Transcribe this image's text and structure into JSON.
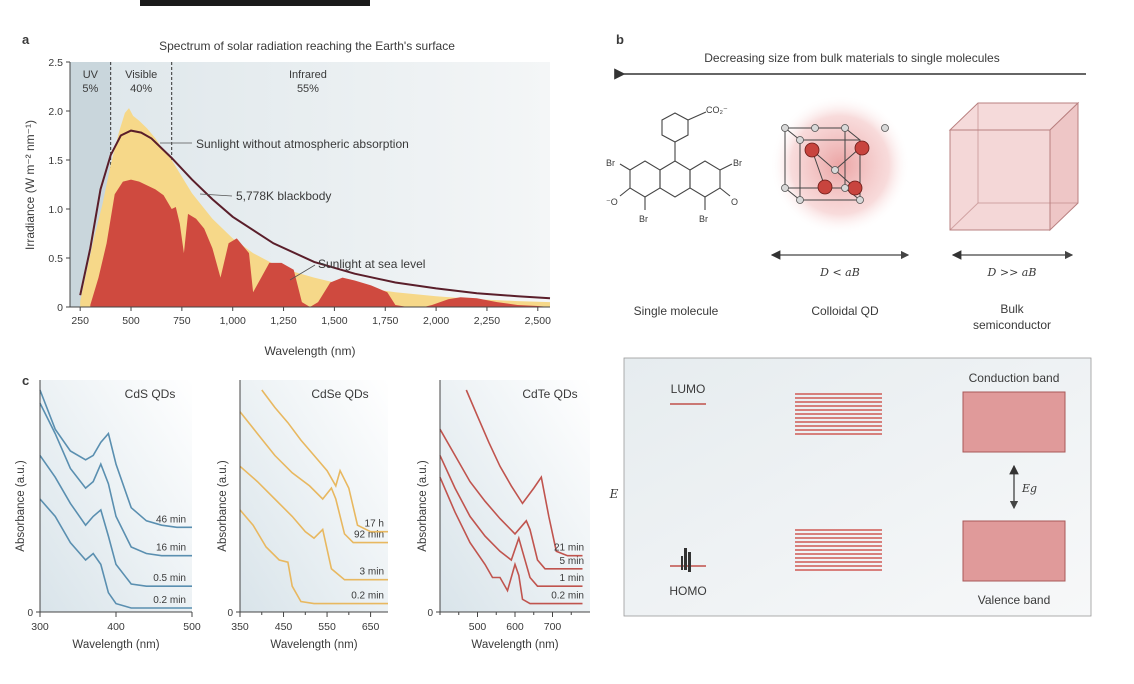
{
  "chart_data": [
    {
      "panel": "a",
      "type": "area",
      "title": "Spectrum of solar radiation reaching the Earth's surface",
      "xlabel": "Wavelength (nm)",
      "ylabel": "Irradiance (W m⁻² nm⁻¹)",
      "xlim": [
        200,
        2560
      ],
      "ylim": [
        0,
        2.5
      ],
      "xticks": [
        "250",
        "500",
        "750",
        "1,000",
        "1,250",
        "1,500",
        "1,750",
        "2,000",
        "2,250",
        "2,500"
      ],
      "xtick_values": [
        250,
        500,
        750,
        1000,
        1250,
        1500,
        1750,
        2000,
        2250,
        2500
      ],
      "yticks": [
        "0",
        "0.5",
        "1.0",
        "1.5",
        "2.0",
        "2.5"
      ],
      "ytick_values": [
        0,
        0.5,
        1.0,
        1.5,
        2.0,
        2.5
      ],
      "regions": [
        {
          "name": "UV",
          "value": "5%",
          "from": 200,
          "to": 400
        },
        {
          "name": "Visible",
          "value": "40%",
          "from": 400,
          "to": 700
        },
        {
          "name": "Infrared",
          "value": "55%",
          "from": 700,
          "to": 2560
        }
      ],
      "region_boundaries": [
        400,
        700
      ],
      "annotations": {
        "extraterrestrial": "Sunlight without atmospheric absorption",
        "blackbody": "5,778K blackbody",
        "sealevel": "Sunlight at sea level"
      },
      "series": [
        {
          "key": "extraterrestrial",
          "color": "#f6d889",
          "x": [
            250,
            280,
            320,
            360,
            400,
            440,
            470,
            490,
            510,
            540,
            580,
            620,
            660,
            700,
            750,
            800,
            900,
            1000,
            1100,
            1200,
            1300,
            1400,
            1500,
            1600,
            1800,
            2000,
            2200,
            2400,
            2560
          ],
          "y": [
            0.06,
            0.35,
            0.72,
            1.05,
            1.45,
            1.78,
            1.98,
            2.03,
            1.95,
            1.9,
            1.82,
            1.72,
            1.6,
            1.5,
            1.33,
            1.16,
            0.9,
            0.7,
            0.55,
            0.44,
            0.36,
            0.3,
            0.25,
            0.21,
            0.15,
            0.11,
            0.08,
            0.06,
            0.05
          ]
        },
        {
          "key": "sealevel",
          "color": "#cf4a3f",
          "x": [
            300,
            340,
            380,
            420,
            460,
            500,
            540,
            580,
            620,
            660,
            700,
            720,
            740,
            760,
            780,
            820,
            860,
            900,
            940,
            980,
            1020,
            1080,
            1100,
            1140,
            1180,
            1240,
            1300,
            1340,
            1380,
            1420,
            1480,
            1540,
            1600,
            1680,
            1760,
            1800,
            1860,
            1940,
            1980,
            2060,
            2120,
            2200,
            2300,
            2400,
            2500,
            2560
          ],
          "y": [
            0.02,
            0.3,
            0.65,
            1.15,
            1.28,
            1.3,
            1.28,
            1.24,
            1.2,
            1.14,
            1.0,
            1.02,
            0.85,
            0.55,
            0.95,
            0.9,
            0.8,
            0.6,
            0.3,
            0.65,
            0.7,
            0.55,
            0.15,
            0.3,
            0.45,
            0.45,
            0.38,
            0.05,
            0.0,
            0.05,
            0.25,
            0.3,
            0.27,
            0.22,
            0.15,
            0.02,
            0.0,
            0.0,
            0.02,
            0.08,
            0.1,
            0.09,
            0.05,
            0.02,
            0.01,
            0.0
          ]
        },
        {
          "key": "blackbody",
          "color": "#5a1e2a",
          "x": [
            250,
            300,
            350,
            400,
            450,
            500,
            550,
            600,
            700,
            800,
            900,
            1000,
            1200,
            1400,
            1600,
            1800,
            2000,
            2200,
            2400,
            2560
          ],
          "y": [
            0.12,
            0.6,
            1.2,
            1.55,
            1.75,
            1.8,
            1.78,
            1.72,
            1.52,
            1.3,
            1.1,
            0.92,
            0.65,
            0.46,
            0.34,
            0.25,
            0.19,
            0.14,
            0.11,
            0.09
          ]
        }
      ]
    },
    {
      "panel": "c",
      "type": "line",
      "title": "CdS QDs",
      "xlabel": "Wavelength (nm)",
      "ylabel": "Absorbance (a.u.)",
      "xlim": [
        300,
        500
      ],
      "xticks": [
        "300",
        "400",
        "500"
      ],
      "xtick_values": [
        300,
        400,
        500
      ],
      "ytick0": "0",
      "color": "#5a8fb0",
      "series": [
        {
          "name": "0.2 min",
          "x": [
            300,
            320,
            340,
            360,
            370,
            380,
            390,
            400,
            420,
            440,
            460,
            480,
            500
          ],
          "y": [
            0.5,
            0.42,
            0.3,
            0.22,
            0.25,
            0.2,
            0.07,
            0.02,
            0.0,
            0.0,
            0.0,
            0.0,
            0.0
          ]
        },
        {
          "name": "0.5 min",
          "x": [
            300,
            320,
            340,
            360,
            370,
            380,
            390,
            400,
            420,
            440,
            460,
            480,
            500
          ],
          "y": [
            0.7,
            0.6,
            0.48,
            0.38,
            0.42,
            0.45,
            0.33,
            0.2,
            0.11,
            0.1,
            0.1,
            0.1,
            0.1
          ]
        },
        {
          "name": "16 min",
          "x": [
            300,
            320,
            340,
            360,
            370,
            380,
            390,
            400,
            420,
            440,
            460,
            480,
            500
          ],
          "y": [
            0.94,
            0.8,
            0.64,
            0.55,
            0.58,
            0.66,
            0.57,
            0.42,
            0.28,
            0.25,
            0.24,
            0.24,
            0.24
          ]
        },
        {
          "name": "46 min",
          "x": [
            300,
            320,
            340,
            360,
            370,
            380,
            390,
            400,
            420,
            440,
            460,
            480,
            500
          ],
          "y": [
            1.0,
            0.82,
            0.72,
            0.68,
            0.7,
            0.76,
            0.8,
            0.66,
            0.46,
            0.4,
            0.38,
            0.37,
            0.37
          ]
        }
      ]
    },
    {
      "panel": "c",
      "type": "line",
      "title": "CdSe QDs",
      "xlabel": "Wavelength (nm)",
      "ylabel": "Absorbance (a.u.)",
      "xlim": [
        350,
        690
      ],
      "xticks": [
        "350",
        "450",
        "550",
        "650"
      ],
      "xtick_values": [
        350,
        450,
        550,
        650
      ],
      "xticks_minor": [
        "400",
        "500",
        "600"
      ],
      "xtick_minor_values": [
        400,
        500,
        600
      ],
      "ytick0": "0",
      "color": "#e8b860",
      "series": [
        {
          "name": "0.2 min",
          "x": [
            350,
            380,
            410,
            440,
            460,
            470,
            490,
            520,
            560,
            600,
            650,
            690
          ],
          "y": [
            0.45,
            0.38,
            0.28,
            0.22,
            0.21,
            0.1,
            0.03,
            0.02,
            0.02,
            0.02,
            0.02,
            0.02
          ]
        },
        {
          "name": "3 min",
          "x": [
            350,
            390,
            430,
            470,
            500,
            520,
            540,
            560,
            590,
            620,
            650,
            690
          ],
          "y": [
            0.65,
            0.58,
            0.5,
            0.42,
            0.35,
            0.32,
            0.36,
            0.18,
            0.13,
            0.13,
            0.13,
            0.13
          ]
        },
        {
          "name": "92 min",
          "x": [
            350,
            390,
            430,
            470,
            510,
            540,
            560,
            570,
            590,
            610,
            650,
            690
          ],
          "y": [
            0.9,
            0.8,
            0.7,
            0.62,
            0.56,
            0.5,
            0.55,
            0.5,
            0.34,
            0.3,
            0.3,
            0.3
          ]
        },
        {
          "name": "17 h",
          "x": [
            400,
            430,
            460,
            490,
            520,
            550,
            570,
            580,
            600,
            620,
            650,
            690
          ],
          "y": [
            1.0,
            0.92,
            0.85,
            0.77,
            0.7,
            0.63,
            0.56,
            0.63,
            0.55,
            0.38,
            0.35,
            0.35
          ]
        }
      ]
    },
    {
      "panel": "c",
      "type": "line",
      "title": "CdTe QDs",
      "xlabel": "Wavelength (nm)",
      "ylabel": "Absorbance (a.u.)",
      "xlim": [
        400,
        800
      ],
      "xticks": [
        "500",
        "600",
        "700"
      ],
      "xtick_values": [
        500,
        600,
        700
      ],
      "xticks_minor": [
        "400",
        "450",
        "550",
        "650",
        "750"
      ],
      "xtick_minor_values": [
        400,
        450,
        550,
        650,
        750
      ],
      "ytick0": "0",
      "color": "#c0544e",
      "series": [
        {
          "name": "0.2 min",
          "x": [
            400,
            440,
            480,
            520,
            540,
            560,
            580,
            600,
            610,
            620,
            640,
            680,
            720,
            780
          ],
          "y": [
            0.6,
            0.44,
            0.3,
            0.2,
            0.14,
            0.14,
            0.08,
            0.2,
            0.15,
            0.04,
            0.02,
            0.02,
            0.02,
            0.02
          ]
        },
        {
          "name": "1 min",
          "x": [
            400,
            440,
            480,
            520,
            560,
            590,
            610,
            620,
            640,
            660,
            700,
            740,
            780
          ],
          "y": [
            0.7,
            0.55,
            0.42,
            0.33,
            0.26,
            0.22,
            0.32,
            0.26,
            0.14,
            0.1,
            0.1,
            0.1,
            0.1
          ]
        },
        {
          "name": "5 min",
          "x": [
            400,
            440,
            480,
            520,
            560,
            600,
            630,
            640,
            660,
            680,
            720,
            760,
            780
          ],
          "y": [
            0.82,
            0.7,
            0.58,
            0.49,
            0.41,
            0.34,
            0.4,
            0.36,
            0.22,
            0.18,
            0.18,
            0.18,
            0.18
          ]
        },
        {
          "name": "21 min",
          "x": [
            470,
            500,
            530,
            560,
            590,
            620,
            650,
            670,
            690,
            710,
            740,
            780
          ],
          "y": [
            1.0,
            0.88,
            0.76,
            0.65,
            0.56,
            0.48,
            0.55,
            0.6,
            0.42,
            0.26,
            0.24,
            0.24
          ]
        }
      ]
    }
  ],
  "panels": {
    "a": "a",
    "b": "b",
    "c": "c"
  },
  "panel_b": {
    "arrow_label": "Decreasing size from bulk materials to single molecules",
    "molecule_labels": {
      "br1": "Br",
      "br2": "Br",
      "br3": "Br",
      "br4": "Br",
      "o_minus": "⁻O",
      "o": "O",
      "co2": "CO₂⁻"
    },
    "size_qd": "D < aB",
    "size_bulk": "D >> aB",
    "items": [
      "Single molecule",
      "Colloidal QD",
      "Bulk semiconductor"
    ],
    "bulk_line1": "Bulk",
    "bulk_line2": "semiconductor",
    "energy": {
      "lumo": "LUMO",
      "homo": "HOMO",
      "conduction": "Conduction band",
      "valence": "Valence band",
      "axis": "E",
      "gap": "Eg"
    }
  }
}
